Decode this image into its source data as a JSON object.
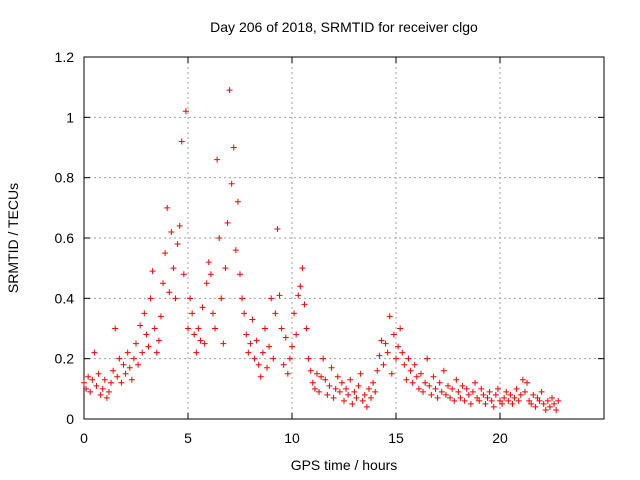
{
  "chart_data": {
    "type": "scatter",
    "title": "Day 206 of 2018, SRMTID for receiver clgo",
    "xlabel": "GPS time / hours",
    "ylabel": "SRMTID / TECUs",
    "xlim": [
      0,
      25
    ],
    "ylim": [
      0,
      1.2
    ],
    "xticks": [
      0,
      5,
      10,
      15,
      20
    ],
    "xtick_labels": [
      "0",
      "5",
      "10",
      "15",
      "20"
    ],
    "yticks": [
      0,
      0.2,
      0.4,
      0.6,
      0.8,
      1.0,
      1.2
    ],
    "ytick_labels": [
      "0",
      "0.2",
      "0.4",
      "0.6",
      "0.8",
      "1",
      "1.2"
    ],
    "grid": true,
    "marker": "plus",
    "series": [
      {
        "name": "SRMTID",
        "color": "#ff0000",
        "x": [
          0.0,
          0.1,
          0.2,
          0.3,
          0.4,
          0.5,
          0.6,
          0.7,
          0.8,
          0.9,
          1.0,
          1.1,
          1.2,
          1.3,
          1.4,
          1.5,
          1.6,
          1.7,
          1.8,
          1.9,
          2.0,
          2.1,
          2.2,
          2.3,
          2.4,
          2.5,
          2.6,
          2.7,
          2.8,
          2.9,
          3.0,
          3.1,
          3.2,
          3.3,
          3.4,
          3.5,
          3.6,
          3.7,
          3.8,
          3.9,
          4.0,
          4.1,
          4.2,
          4.3,
          4.4,
          4.5,
          4.6,
          4.7,
          4.8,
          4.9,
          5.0,
          5.1,
          5.2,
          5.3,
          5.4,
          5.5,
          5.6,
          5.7,
          5.8,
          5.9,
          6.0,
          6.1,
          6.2,
          6.3,
          6.4,
          6.5,
          6.6,
          6.7,
          6.8,
          6.9,
          7.0,
          7.1,
          7.2,
          7.3,
          7.4,
          7.5,
          7.6,
          7.7,
          7.8,
          7.9,
          8.0,
          8.1,
          8.2,
          8.3,
          8.4,
          8.5,
          8.6,
          8.7,
          8.8,
          8.9,
          9.0,
          9.1,
          9.2,
          9.3,
          9.4,
          9.5,
          9.6,
          9.7,
          9.8,
          9.9,
          10.0,
          10.1,
          10.2,
          10.3,
          10.4,
          10.5,
          10.6,
          10.7,
          10.8,
          10.9,
          11.0,
          11.1,
          11.2,
          11.3,
          11.4,
          11.5,
          11.6,
          11.7,
          11.8,
          11.9,
          12.0,
          12.1,
          12.2,
          12.3,
          12.4,
          12.5,
          12.6,
          12.7,
          12.8,
          12.9,
          13.0,
          13.1,
          13.2,
          13.3,
          13.4,
          13.5,
          13.6,
          13.7,
          13.8,
          13.9,
          14.0,
          14.1,
          14.2,
          14.3,
          14.4,
          14.5,
          14.6,
          14.7,
          14.8,
          14.9,
          15.0,
          15.1,
          15.2,
          15.3,
          15.4,
          15.5,
          15.6,
          15.7,
          15.8,
          15.9,
          16.0,
          16.1,
          16.2,
          16.3,
          16.4,
          16.5,
          16.6,
          16.7,
          16.8,
          16.9,
          17.0,
          17.1,
          17.2,
          17.3,
          17.4,
          17.5,
          17.6,
          17.7,
          17.8,
          17.9,
          18.0,
          18.1,
          18.2,
          18.3,
          18.4,
          18.5,
          18.6,
          18.7,
          18.8,
          18.9,
          19.0,
          19.1,
          19.2,
          19.3,
          19.4,
          19.5,
          19.6,
          19.7,
          19.8,
          19.9,
          20.0,
          20.1,
          20.2,
          20.3,
          20.4,
          20.5,
          20.6,
          20.7,
          20.8,
          20.9,
          21.0,
          21.1,
          21.2,
          21.3,
          21.4,
          21.5,
          21.6,
          21.7,
          21.8,
          21.9,
          22.0,
          22.1,
          22.2,
          22.3,
          22.4,
          22.5,
          22.6,
          22.7,
          22.8
        ],
        "y": [
          0.12,
          0.1,
          0.14,
          0.09,
          0.13,
          0.22,
          0.11,
          0.15,
          0.08,
          0.1,
          0.13,
          0.07,
          0.09,
          0.12,
          0.16,
          0.3,
          0.14,
          0.2,
          0.12,
          0.18,
          0.15,
          0.22,
          0.17,
          0.13,
          0.2,
          0.25,
          0.18,
          0.31,
          0.22,
          0.35,
          0.28,
          0.24,
          0.4,
          0.49,
          0.3,
          0.22,
          0.26,
          0.34,
          0.45,
          0.55,
          0.7,
          0.42,
          0.62,
          0.5,
          0.4,
          0.58,
          0.64,
          0.92,
          0.48,
          1.02,
          0.3,
          0.4,
          0.35,
          0.28,
          0.22,
          0.3,
          0.26,
          0.37,
          0.25,
          0.45,
          0.52,
          0.48,
          0.35,
          0.3,
          0.86,
          0.6,
          0.4,
          0.25,
          0.5,
          0.65,
          1.09,
          0.78,
          0.9,
          0.56,
          0.72,
          0.48,
          0.4,
          0.35,
          0.28,
          0.22,
          0.25,
          0.33,
          0.2,
          0.26,
          0.18,
          0.14,
          0.22,
          0.3,
          0.17,
          0.24,
          0.4,
          0.2,
          0.35,
          0.63,
          0.41,
          0.3,
          0.18,
          0.27,
          0.15,
          0.2,
          0.24,
          0.35,
          0.28,
          0.41,
          0.44,
          0.5,
          0.38,
          0.3,
          0.2,
          0.16,
          0.12,
          0.1,
          0.15,
          0.09,
          0.14,
          0.2,
          0.13,
          0.08,
          0.11,
          0.17,
          0.07,
          0.1,
          0.14,
          0.09,
          0.12,
          0.06,
          0.1,
          0.08,
          0.13,
          0.05,
          0.09,
          0.07,
          0.11,
          0.15,
          0.06,
          0.08,
          0.04,
          0.1,
          0.07,
          0.12,
          0.09,
          0.16,
          0.21,
          0.26,
          0.18,
          0.25,
          0.22,
          0.34,
          0.15,
          0.28,
          0.2,
          0.24,
          0.3,
          0.22,
          0.18,
          0.13,
          0.2,
          0.16,
          0.12,
          0.18,
          0.14,
          0.1,
          0.15,
          0.09,
          0.12,
          0.2,
          0.11,
          0.08,
          0.14,
          0.1,
          0.07,
          0.12,
          0.09,
          0.16,
          0.08,
          0.11,
          0.07,
          0.1,
          0.06,
          0.13,
          0.09,
          0.07,
          0.11,
          0.06,
          0.1,
          0.08,
          0.05,
          0.09,
          0.12,
          0.07,
          0.06,
          0.1,
          0.08,
          0.05,
          0.07,
          0.09,
          0.06,
          0.04,
          0.08,
          0.1,
          0.06,
          0.05,
          0.07,
          0.09,
          0.06,
          0.08,
          0.05,
          0.07,
          0.1,
          0.06,
          0.08,
          0.13,
          0.09,
          0.12,
          0.06,
          0.05,
          0.08,
          0.04,
          0.07,
          0.06,
          0.09,
          0.05,
          0.03,
          0.06,
          0.04,
          0.07,
          0.05,
          0.03,
          0.06
        ]
      }
    ]
  }
}
